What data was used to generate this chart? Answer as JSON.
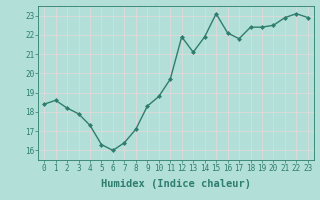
{
  "x": [
    0,
    1,
    2,
    3,
    4,
    5,
    6,
    7,
    8,
    9,
    10,
    11,
    12,
    13,
    14,
    15,
    16,
    17,
    18,
    19,
    20,
    21,
    22,
    23
  ],
  "y": [
    18.4,
    18.6,
    18.2,
    17.9,
    17.3,
    16.3,
    16.0,
    16.4,
    17.1,
    18.3,
    18.8,
    19.7,
    21.9,
    21.1,
    21.9,
    23.1,
    22.1,
    21.8,
    22.4,
    22.4,
    22.5,
    22.9,
    23.1,
    22.9
  ],
  "line_color": "#2e7d6e",
  "marker": "D",
  "marker_size": 2.0,
  "bg_color": "#b2e0d8",
  "grid_color": "#d0ece8",
  "xlabel": "Humidex (Indice chaleur)",
  "xlim": [
    -0.5,
    23.5
  ],
  "ylim": [
    15.5,
    23.5
  ],
  "yticks": [
    16,
    17,
    18,
    19,
    20,
    21,
    22,
    23
  ],
  "xticks": [
    0,
    1,
    2,
    3,
    4,
    5,
    6,
    7,
    8,
    9,
    10,
    11,
    12,
    13,
    14,
    15,
    16,
    17,
    18,
    19,
    20,
    21,
    22,
    23
  ],
  "tick_labelsize": 5.5,
  "xlabel_fontsize": 7.5,
  "line_width": 1.0
}
